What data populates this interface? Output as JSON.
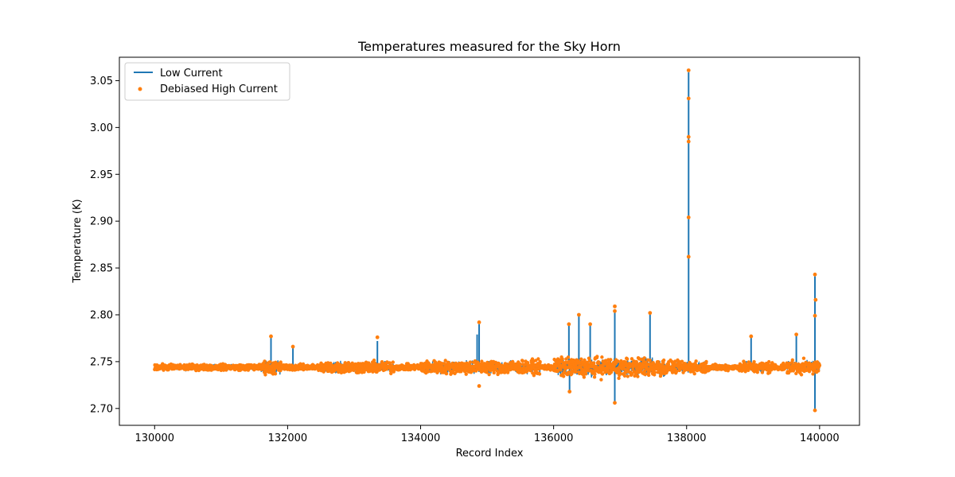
{
  "chart_data": {
    "type": "line",
    "title": "Temperatures measured for the Sky Horn",
    "xlabel": "Record Index",
    "ylabel": "Temperature (K)",
    "xlim": [
      129470,
      140600
    ],
    "ylim": [
      2.682,
      3.075
    ],
    "x_ticks": [
      130000,
      132000,
      134000,
      136000,
      138000,
      140000
    ],
    "x_tick_labels": [
      "130000",
      "132000",
      "134000",
      "136000",
      "138000",
      "140000"
    ],
    "y_ticks": [
      2.7,
      2.75,
      2.8,
      2.85,
      2.9,
      2.95,
      3.0,
      3.05
    ],
    "y_tick_labels": [
      "2.70",
      "2.75",
      "2.80",
      "2.85",
      "2.90",
      "2.95",
      "3.00",
      "3.05"
    ],
    "grid": false,
    "legend_position": "top-left",
    "series": [
      {
        "name": "Low Current",
        "kind": "line",
        "color": "#1f77b4",
        "x_range": [
          130000,
          140000
        ],
        "baseline": 2.744,
        "spikes": [
          {
            "x": 131750,
            "y": 2.776
          },
          {
            "x": 132080,
            "y": 2.766
          },
          {
            "x": 133350,
            "y": 2.772
          },
          {
            "x": 134850,
            "y": 2.779
          },
          {
            "x": 134880,
            "y": 2.79
          },
          {
            "x": 136230,
            "y": 2.789
          },
          {
            "x": 136380,
            "y": 2.799
          },
          {
            "x": 136550,
            "y": 2.79
          },
          {
            "x": 136920,
            "y": 2.806
          },
          {
            "x": 137450,
            "y": 2.801
          },
          {
            "x": 138030,
            "y": 3.059
          },
          {
            "x": 138970,
            "y": 2.776
          },
          {
            "x": 139650,
            "y": 2.778
          },
          {
            "x": 139930,
            "y": 2.841
          }
        ],
        "dips": [
          {
            "x": 136240,
            "y": 2.718
          },
          {
            "x": 136920,
            "y": 2.706
          },
          {
            "x": 139930,
            "y": 2.698
          }
        ]
      },
      {
        "name": "Debiased High Current",
        "kind": "scatter",
        "color": "#ff7f0e",
        "x_range": [
          130000,
          140000
        ],
        "baseline": 2.744,
        "highlight_points": [
          {
            "x": 138030,
            "y": 3.061
          },
          {
            "x": 138030,
            "y": 3.031
          },
          {
            "x": 138030,
            "y": 2.99
          },
          {
            "x": 138030,
            "y": 2.985
          },
          {
            "x": 138030,
            "y": 2.904
          },
          {
            "x": 138030,
            "y": 2.862
          },
          {
            "x": 139930,
            "y": 2.843
          },
          {
            "x": 139940,
            "y": 2.816
          },
          {
            "x": 139930,
            "y": 2.799
          },
          {
            "x": 136920,
            "y": 2.809
          },
          {
            "x": 136920,
            "y": 2.804
          },
          {
            "x": 137450,
            "y": 2.802
          },
          {
            "x": 136380,
            "y": 2.8
          },
          {
            "x": 134880,
            "y": 2.792
          },
          {
            "x": 136230,
            "y": 2.79
          },
          {
            "x": 136550,
            "y": 2.79
          },
          {
            "x": 131750,
            "y": 2.777
          },
          {
            "x": 138970,
            "y": 2.777
          },
          {
            "x": 139650,
            "y": 2.779
          },
          {
            "x": 133350,
            "y": 2.776
          },
          {
            "x": 132080,
            "y": 2.766
          },
          {
            "x": 139930,
            "y": 2.698
          },
          {
            "x": 136920,
            "y": 2.706
          },
          {
            "x": 136240,
            "y": 2.718
          },
          {
            "x": 134880,
            "y": 2.724
          }
        ]
      }
    ]
  }
}
